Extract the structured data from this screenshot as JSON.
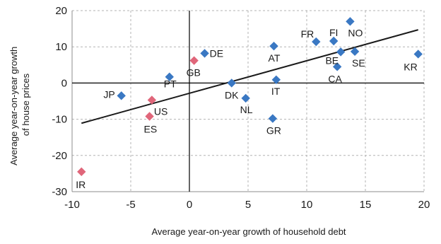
{
  "chart_data": {
    "type": "scatter",
    "xlabel": "Average year-on-year growth of household debt",
    "ylabel_lines": [
      "Average year-on-year growth",
      "of house prices"
    ],
    "xlim": [
      -10,
      20
    ],
    "ylim": [
      -30,
      20
    ],
    "xticks": [
      -10,
      -5,
      0,
      5,
      10,
      15,
      20
    ],
    "yticks": [
      -30,
      -20,
      -10,
      0,
      10,
      20
    ],
    "grid": true,
    "colors": {
      "blue": "#3a78c3",
      "red": "#e0667a",
      "trend": "#1a1a1a",
      "grid": "#b3b3b3"
    },
    "points": [
      {
        "label": "JP",
        "x": -5.8,
        "y": -3.5,
        "color": "blue"
      },
      {
        "label": "PT",
        "x": -1.7,
        "y": 1.7,
        "color": "blue"
      },
      {
        "label": "DE",
        "x": 1.3,
        "y": 8.2,
        "color": "blue"
      },
      {
        "label": "DK",
        "x": 3.6,
        "y": 0.0,
        "color": "blue"
      },
      {
        "label": "NL",
        "x": 4.8,
        "y": -4.2,
        "color": "blue"
      },
      {
        "label": "AT",
        "x": 7.2,
        "y": 10.2,
        "color": "blue"
      },
      {
        "label": "IT",
        "x": 7.4,
        "y": 0.9,
        "color": "blue"
      },
      {
        "label": "GR",
        "x": 7.1,
        "y": -9.8,
        "color": "blue"
      },
      {
        "label": "FR",
        "x": 10.8,
        "y": 11.4,
        "color": "blue"
      },
      {
        "label": "FI",
        "x": 12.3,
        "y": 11.6,
        "color": "blue"
      },
      {
        "label": "NO",
        "x": 13.7,
        "y": 17.0,
        "color": "blue"
      },
      {
        "label": "BE",
        "x": 12.9,
        "y": 8.6,
        "color": "blue"
      },
      {
        "label": "SE",
        "x": 14.1,
        "y": 8.7,
        "color": "blue"
      },
      {
        "label": "CA",
        "x": 12.6,
        "y": 4.5,
        "color": "blue"
      },
      {
        "label": "KR",
        "x": 19.5,
        "y": 8.0,
        "color": "blue"
      },
      {
        "label": "GB",
        "x": 0.4,
        "y": 6.2,
        "color": "red"
      },
      {
        "label": "US",
        "x": -3.2,
        "y": -4.7,
        "color": "red"
      },
      {
        "label": "ES",
        "x": -3.4,
        "y": -9.2,
        "color": "red"
      },
      {
        "label": "IR",
        "x": -9.2,
        "y": -24.5,
        "color": "red"
      }
    ],
    "trendline": {
      "x": [
        -9.2,
        19.5
      ],
      "y": [
        -11.1,
        14.7
      ]
    }
  }
}
